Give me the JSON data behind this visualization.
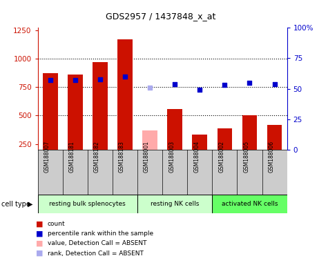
{
  "title": "GDS2957 / 1437848_x_at",
  "samples": [
    "GSM188007",
    "GSM188181",
    "GSM188182",
    "GSM188183",
    "GSM188001",
    "GSM188003",
    "GSM188004",
    "GSM188002",
    "GSM188005",
    "GSM188006"
  ],
  "counts": [
    870,
    860,
    970,
    1170,
    null,
    555,
    330,
    390,
    500,
    420
  ],
  "counts_absent": [
    null,
    null,
    null,
    null,
    370,
    null,
    null,
    null,
    null,
    null
  ],
  "percentile_ranks": [
    57,
    57,
    58,
    60,
    null,
    54,
    49,
    53,
    55,
    54
  ],
  "percentile_ranks_absent": [
    null,
    null,
    null,
    null,
    51,
    null,
    null,
    null,
    null,
    null
  ],
  "detection_absent": [
    false,
    false,
    false,
    false,
    true,
    false,
    false,
    false,
    false,
    false
  ],
  "cell_groups": [
    {
      "label": "resting bulk splenocytes",
      "start": 0,
      "end": 3,
      "color": "#ccffcc"
    },
    {
      "label": "resting NK cells",
      "start": 4,
      "end": 6,
      "color": "#ccffcc"
    },
    {
      "label": "activated NK cells",
      "start": 7,
      "end": 9,
      "color": "#66ff66"
    }
  ],
  "bar_color_present": "#cc1100",
  "bar_color_absent": "#ffaaaa",
  "dot_color_present": "#0000cc",
  "dot_color_absent": "#aaaaee",
  "ylim_left": [
    200,
    1270
  ],
  "ylim_right": [
    0,
    100
  ],
  "yticks_left": [
    250,
    500,
    750,
    1000,
    1250
  ],
  "yticks_right": [
    0,
    25,
    50,
    75,
    100
  ],
  "bar_bottom": 200,
  "bar_width": 0.6,
  "left_axis_color": "#cc1100",
  "right_axis_color": "#0000cc",
  "group_label_color": "#cccccc",
  "sample_box_color": "#cccccc"
}
